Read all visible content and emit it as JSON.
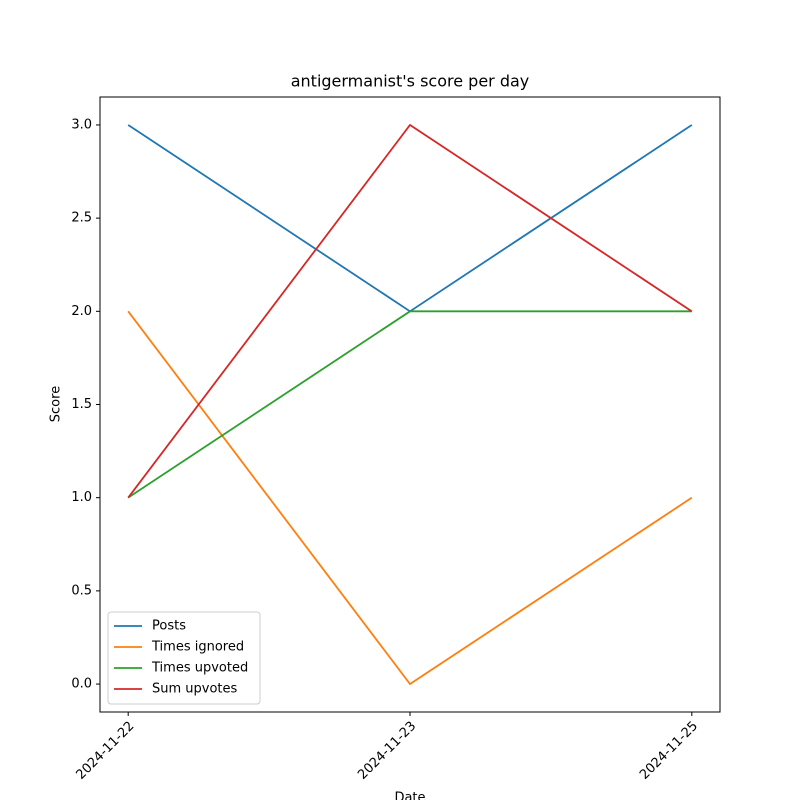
{
  "chart_data": {
    "type": "line",
    "title": "antigermanist's score per day",
    "xlabel": "Date",
    "ylabel": "Score",
    "categories": [
      "2024-11-22",
      "2024-11-23",
      "2024-11-25"
    ],
    "series": [
      {
        "name": "Posts",
        "color": "#1f77b4",
        "values": [
          3,
          2,
          3
        ]
      },
      {
        "name": "Times ignored",
        "color": "#ff7f0e",
        "values": [
          2,
          0,
          1
        ]
      },
      {
        "name": "Times upvoted",
        "color": "#2ca02c",
        "values": [
          1,
          2,
          2
        ]
      },
      {
        "name": "Sum upvotes",
        "color": "#d62728",
        "values": [
          1,
          3,
          2
        ]
      }
    ],
    "ylim": [
      -0.15,
      3.15
    ],
    "yticks": [
      {
        "value": 0,
        "label": "0.0"
      },
      {
        "value": 0.5,
        "label": "0.5"
      },
      {
        "value": 1,
        "label": "1.0"
      },
      {
        "value": 1.5,
        "label": "1.5"
      },
      {
        "value": 2,
        "label": "2.0"
      },
      {
        "value": 2.5,
        "label": "2.5"
      },
      {
        "value": 3,
        "label": "3.0"
      }
    ],
    "legend": "lower left"
  }
}
